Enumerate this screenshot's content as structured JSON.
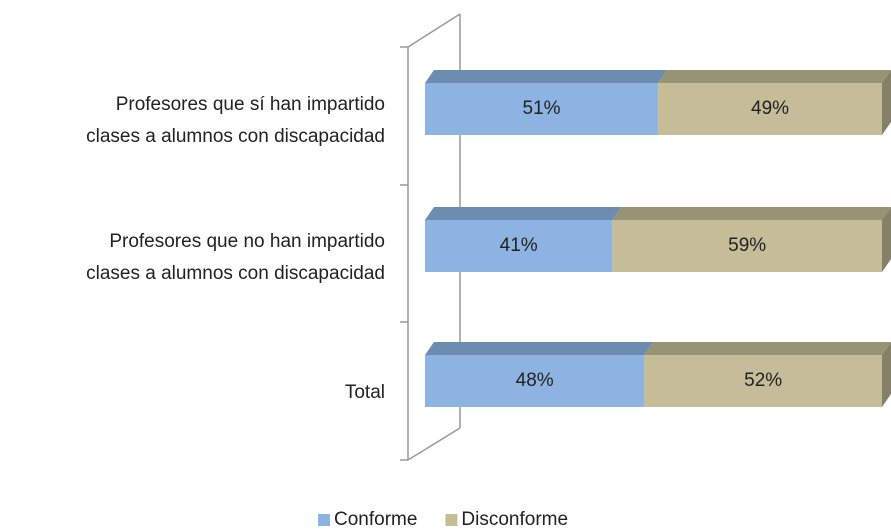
{
  "chart_data": {
    "type": "bar",
    "orientation": "horizontal",
    "stacked": true,
    "categories": [
      [
        "Profesores que sí han impartido",
        "clases a alumnos con discapacidad"
      ],
      [
        "Profesores que no han impartido",
        "clases a alumnos con discapacidad"
      ],
      [
        "Total"
      ]
    ],
    "xlim": [
      0,
      100
    ],
    "series": [
      {
        "name": "Conforme",
        "color": "#8db3e2",
        "values": [
          51,
          41,
          48
        ],
        "value_labels": [
          "51%",
          "41%",
          "48%"
        ]
      },
      {
        "name": "Disconforme",
        "color": "#c4bd97",
        "values": [
          49,
          59,
          52
        ],
        "value_labels": [
          "49%",
          "59%",
          "52%"
        ]
      }
    ],
    "legend": "bottom"
  }
}
